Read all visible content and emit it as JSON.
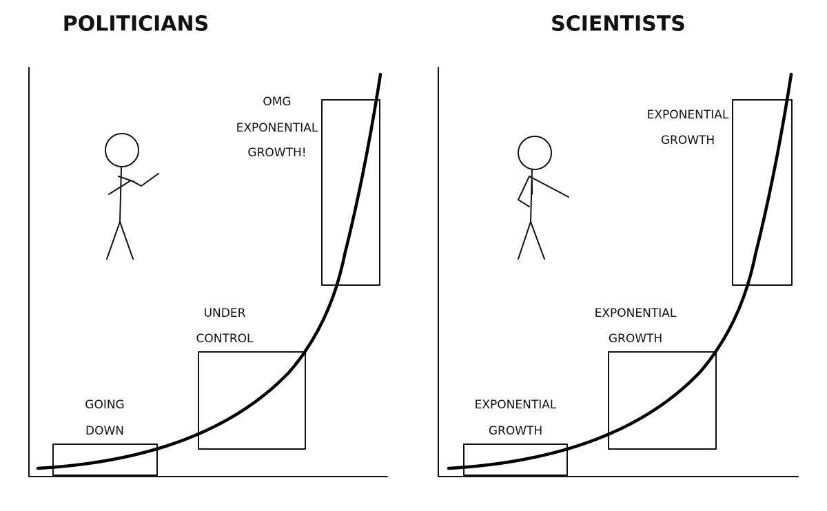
{
  "panels": [
    {
      "title": "POLITICIANS",
      "labels": [
        [
          "GOING",
          "DOWN"
        ],
        [
          "UNDER",
          "CONTROL"
        ],
        [
          "OMG",
          "EXPONENTIAL",
          "GROWTH!"
        ]
      ]
    },
    {
      "title": "SCIENTISTS",
      "labels": [
        [
          "EXPONENTIAL",
          "GROWTH"
        ],
        [
          "EXPONENTIAL",
          "GROWTH"
        ],
        [
          "EXPONENTIAL",
          "GROWTH"
        ]
      ]
    }
  ]
}
